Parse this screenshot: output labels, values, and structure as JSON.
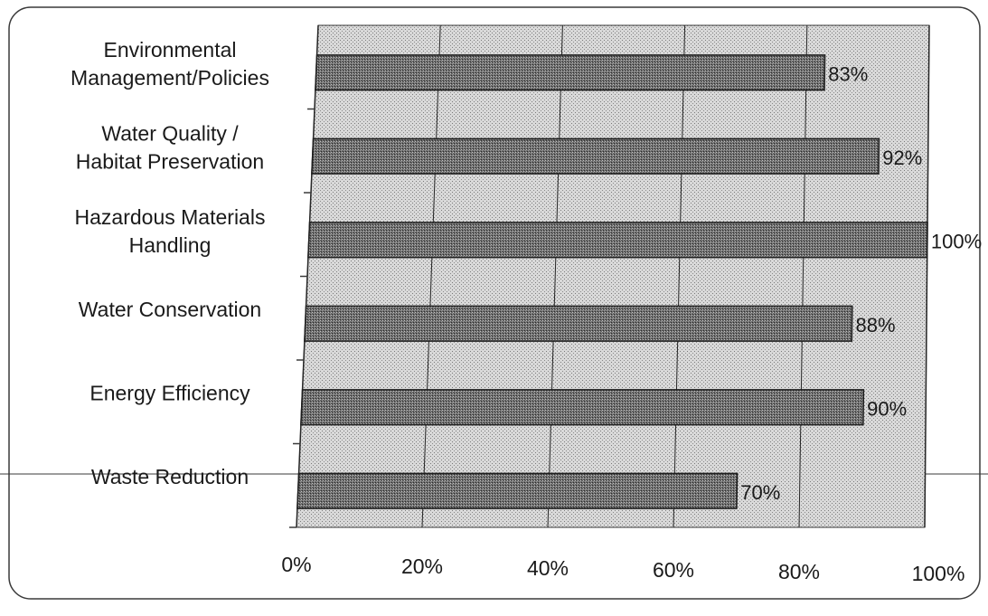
{
  "chart_data": {
    "type": "bar",
    "orientation": "horizontal",
    "title": "",
    "xlabel": "",
    "ylabel": "",
    "xlim": [
      0,
      100
    ],
    "x_unit": "%",
    "grid": true,
    "legend": "none",
    "categories": [
      "Environmental\nManagement/Policies",
      "Water Quality /\nHabitat Preservation",
      "Hazardous Materials\nHandling",
      "Water Conservation",
      "Energy Efficiency",
      "Waste Reduction"
    ],
    "values": [
      83,
      92,
      100,
      88,
      90,
      70
    ],
    "data_labels": [
      "83%",
      "92%",
      "100%",
      "88%",
      "90%",
      "70%"
    ],
    "x_ticks": [
      "0%",
      "20%",
      "40%",
      "60%",
      "80%",
      "100%"
    ],
    "x_tick_values": [
      0,
      20,
      40,
      60,
      80,
      100
    ],
    "colors": {
      "plot_background": "#cfcfcf",
      "bar_fill": "#6f6f6f",
      "bar_stroke": "#1e1e1e",
      "gridline": "#262626",
      "text": "#1a1a1a",
      "frame": "#3a3a3a"
    }
  }
}
